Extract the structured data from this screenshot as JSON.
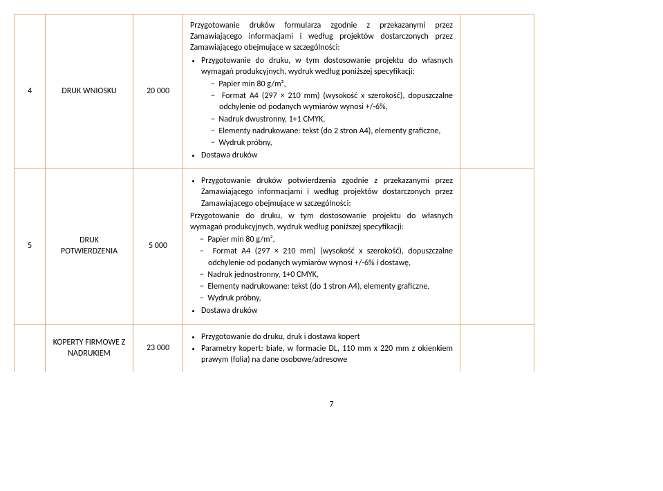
{
  "row4": {
    "num": "4",
    "name": "DRUK WNIOSKU",
    "qty": "20 000",
    "intro": "Przygotowanie druków formularza zgodnie z przekazanymi przez Zamawiającego informacjami i według projektów dostarczonych przez Zamawiającego obejmujące w szczególności:",
    "b1": "Przygotowanie do druku, w tym dostosowanie projektu do własnych wymagań produkcyjnych, wydruk według poniższej specyfikacji:",
    "d1": "Papier min 80 g/m²,",
    "d2": "Format A4 (297 × 210 mm) (wysokość x szerokość), dopuszczalne odchylenie od podanych wymiarów wynosi +/-6%,",
    "d3": "Nadruk dwustronny, 1+1 CMYK,",
    "d4": "Elementy nadrukowane: tekst (do 2 stron A4), elementy graficzne,",
    "d5": "Wydruk próbny,",
    "b2": "Dostawa druków"
  },
  "row5": {
    "num": "5",
    "name": "DRUK POTWIERDZENIA",
    "qty": "5 000",
    "b0": "Przygotowanie druków potwierdzenia zgodnie z przekazanymi przez Zamawiającego informacjami i według projektów dostarczonych przez Zamawiającego obejmujące w szczególności:",
    "p1": "Przygotowanie do druku, w tym dostosowanie projektu do własnych wymagań produkcyjnych, wydruk według poniższej specyfikacji:",
    "d1": "Papier min 80 g/m²,",
    "d2": "Format A4 (297 × 210 mm) (wysokość x szerokość), dopuszczalne odchylenie od podanych wymiarów wynosi +/-6% i dostawę,",
    "d3": "Nadruk jednostronny, 1+0 CMYK,",
    "d4": "Elementy nadrukowane: tekst (do 1 stron A4), elementy graficzne,",
    "d5": "Wydruk próbny,",
    "b2": "Dostawa druków"
  },
  "row6": {
    "name": "KOPERTY FIRMOWE Z NADRUKIEM",
    "qty": "23 000",
    "b1": "Przygotowanie do druku, druk i dostawa kopert",
    "b2": "Parametry kopert: białe, w formacie DL, 110 mm x 220 mm z okienkiem prawym (folia) na dane osobowe/adresowe"
  },
  "page_number": "7"
}
